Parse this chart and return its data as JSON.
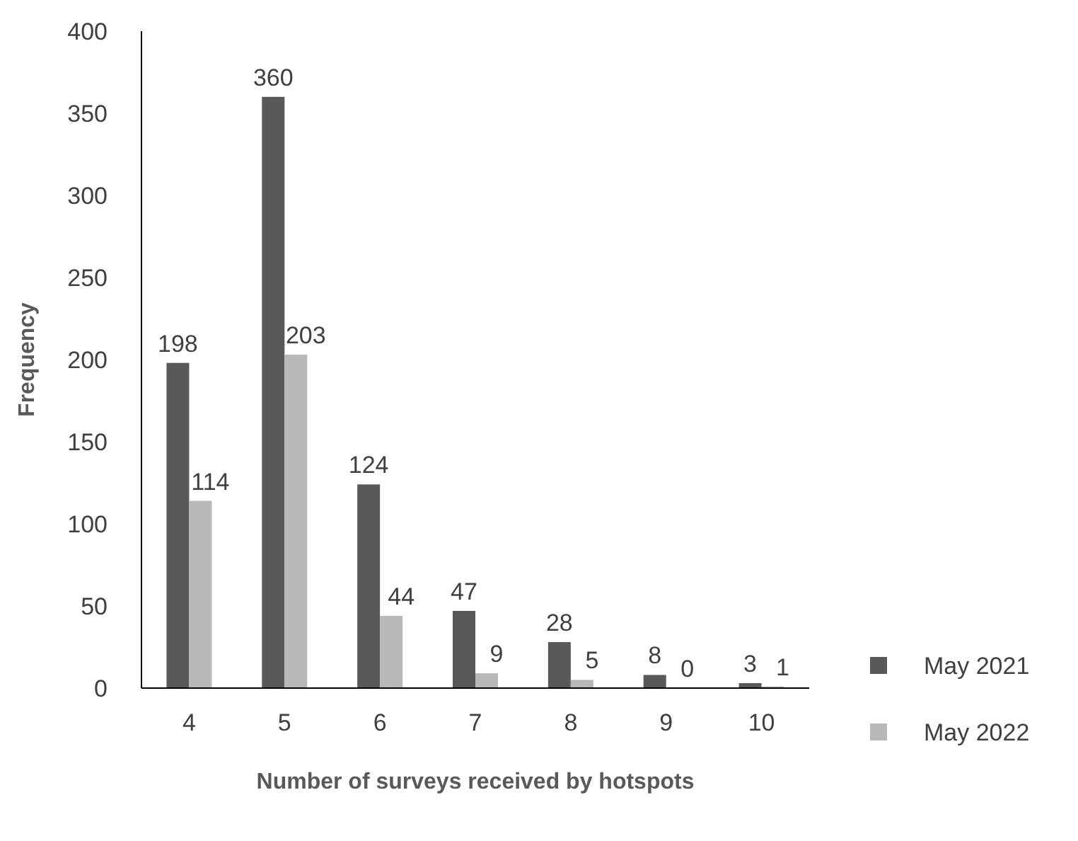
{
  "chart_data": {
    "type": "bar",
    "xlabel": "Number of surveys received by hotspots",
    "ylabel": "Frequency",
    "categories": [
      "4",
      "5",
      "6",
      "7",
      "8",
      "9",
      "10"
    ],
    "series": [
      {
        "name": "May 2021",
        "color": "#595959",
        "values": [
          198,
          360,
          124,
          47,
          28,
          8,
          3
        ]
      },
      {
        "name": "May 2022",
        "color": "#b8b8b8",
        "values": [
          114,
          203,
          44,
          9,
          5,
          0,
          1
        ]
      }
    ],
    "ylim": [
      0,
      400
    ],
    "yticks": [
      0,
      50,
      100,
      150,
      200,
      250,
      300,
      350,
      400
    ],
    "grid": false,
    "legend": "right",
    "data_labels": true
  }
}
